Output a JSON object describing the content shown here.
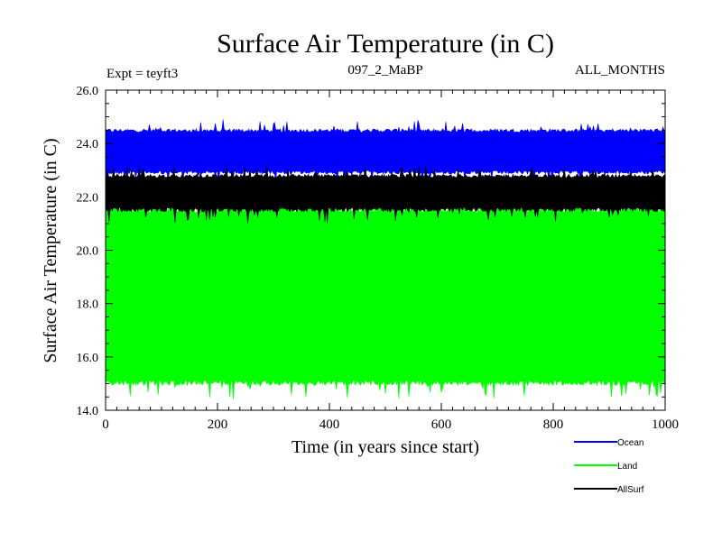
{
  "chart_data": {
    "type": "line",
    "title": "Surface Air Temperature (in C)",
    "header_left": "Expt = teyft3",
    "header_center": "097_2_MaBP",
    "header_right": "ALL_MONTHS",
    "xlabel": "Time (in years since start)",
    "ylabel": "Surface Air Temperature (in C)",
    "xlim": [
      0,
      1000
    ],
    "ylim": [
      14.0,
      26.0
    ],
    "x_ticks": [
      0,
      200,
      400,
      600,
      800,
      1000
    ],
    "x_tick_labels": [
      "0",
      "200",
      "400",
      "600",
      "800",
      "1000"
    ],
    "y_ticks": [
      14.0,
      16.0,
      18.0,
      20.0,
      22.0,
      24.0,
      26.0
    ],
    "y_tick_labels": [
      "14.0",
      "16.0",
      "18.0",
      "20.0",
      "22.0",
      "24.0",
      "26.0"
    ],
    "legend_position": "bottom-right",
    "series": [
      {
        "name": "Ocean",
        "color": "#0000ff",
        "band_low": 22.9,
        "band_high": 24.5,
        "low_min": 22.5,
        "high_max": 24.9
      },
      {
        "name": "Land",
        "color": "#00ff00",
        "band_low": 15.0,
        "band_high": 21.6,
        "low_min": 14.4,
        "high_max": 22.6
      },
      {
        "name": "AllSurf",
        "color": "#000000",
        "band_low": 21.5,
        "band_high": 22.8,
        "low_min": 21.0,
        "high_max": 23.2
      }
    ]
  }
}
